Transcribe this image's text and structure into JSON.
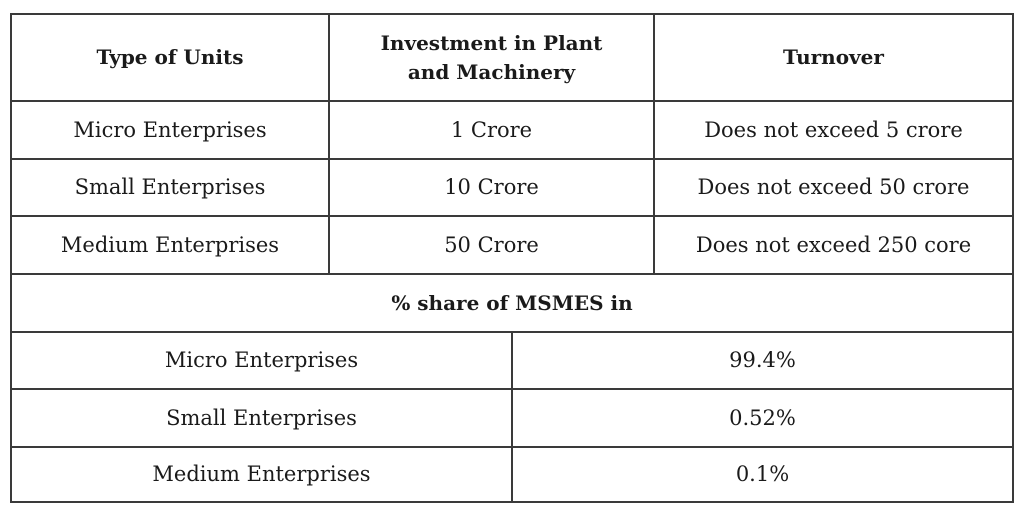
{
  "table": {
    "headers": [
      "Type of Units",
      "Investment in Plant\nand Machinery",
      "Turnover"
    ],
    "rows": [
      [
        "Micro Enterprises",
        "1 Crore",
        "Does not exceed 5 crore"
      ],
      [
        "Small Enterprises",
        "10 Crore",
        "Does not exceed 50 crore"
      ],
      [
        "Medium Enterprises",
        "50 Crore",
        "Does not exceed 250 core"
      ]
    ]
  },
  "share": {
    "title": "% share of MSMES in",
    "rows": [
      [
        "Micro Enterprises",
        "99.4%"
      ],
      [
        "Small Enterprises",
        "0.52%"
      ],
      [
        "Medium Enterprises",
        "0.1%"
      ]
    ]
  }
}
